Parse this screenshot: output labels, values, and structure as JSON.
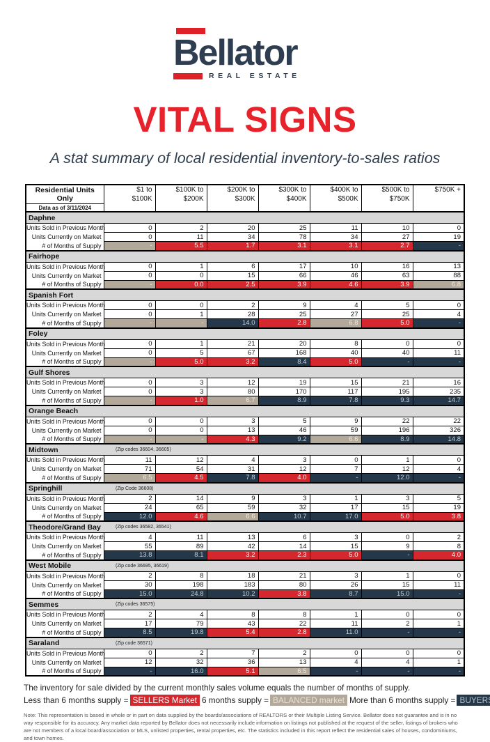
{
  "logo": {
    "name": "Bellator",
    "tagline": "REAL ESTATE"
  },
  "title": "VITAL SIGNS",
  "subtitle": "A stat summary of local residential inventory-to-sales ratios",
  "colors": {
    "brand_navy": "#2e3d4f",
    "brand_red": "#e02028",
    "title_red": "#e8222b",
    "cell_red": "#d5282e",
    "cell_navy": "#24384a",
    "cell_balanced": "#b2a99a",
    "region_header_gray": "#d8d8d8"
  },
  "table": {
    "corner": {
      "line1": "Residential Units Only",
      "line2": "Data as of 3/11/2024"
    },
    "columns": [
      [
        "$1 to",
        "$100K"
      ],
      [
        "$100K to",
        "$200K"
      ],
      [
        "$200K to",
        "$300K"
      ],
      [
        "$300K to",
        "$400K"
      ],
      [
        "$400K to",
        "$500K"
      ],
      [
        "$500K to",
        "$750K"
      ],
      [
        "$750K +",
        ""
      ]
    ],
    "row_labels": [
      "Units Sold in Previous Month",
      "Units Currently on Market",
      "# of Months of Supply"
    ],
    "regions": [
      {
        "name": "Daphne",
        "zip": "",
        "sold": [
          0,
          2,
          20,
          25,
          11,
          10,
          0
        ],
        "on_market": [
          0,
          11,
          34,
          78,
          34,
          27,
          19
        ],
        "supply": [
          "-",
          "5.5",
          "1.7",
          "3.1",
          "3.1",
          "2.7",
          "-"
        ],
        "supply_status": [
          "balanced",
          "sellers",
          "sellers",
          "sellers",
          "sellers",
          "sellers",
          "buyers"
        ]
      },
      {
        "name": "Fairhope",
        "zip": "",
        "sold": [
          0,
          1,
          6,
          17,
          10,
          16,
          13
        ],
        "on_market": [
          0,
          0,
          15,
          66,
          46,
          63,
          88
        ],
        "supply": [
          "-",
          "0.0",
          "2.5",
          "3.9",
          "4.6",
          "3.9",
          "6.8"
        ],
        "supply_status": [
          "balanced",
          "sellers",
          "sellers",
          "sellers",
          "sellers",
          "sellers",
          "balanced"
        ]
      },
      {
        "name": "Spanish Fort",
        "zip": "",
        "sold": [
          0,
          0,
          2,
          9,
          4,
          5,
          0
        ],
        "on_market": [
          0,
          1,
          28,
          25,
          27,
          25,
          4
        ],
        "supply": [
          "-",
          "-",
          "14.0",
          "2.8",
          "6.8",
          "5.0",
          "-"
        ],
        "supply_status": [
          "balanced",
          "balanced",
          "buyers",
          "sellers",
          "balanced",
          "sellers",
          "buyers"
        ]
      },
      {
        "name": "Foley",
        "zip": "",
        "sold": [
          0,
          1,
          21,
          20,
          8,
          0,
          0
        ],
        "on_market": [
          0,
          5,
          67,
          168,
          40,
          40,
          11
        ],
        "supply": [
          "-",
          "5.0",
          "3.2",
          "8.4",
          "5.0",
          "-",
          "-"
        ],
        "supply_status": [
          "balanced",
          "sellers",
          "sellers",
          "buyers",
          "sellers",
          "buyers",
          "buyers"
        ]
      },
      {
        "name": "Gulf Shores",
        "zip": "",
        "sold": [
          0,
          3,
          12,
          19,
          15,
          21,
          16
        ],
        "on_market": [
          0,
          3,
          80,
          170,
          117,
          195,
          235
        ],
        "supply": [
          "-",
          "1.0",
          "6.7",
          "8.9",
          "7.8",
          "9.3",
          "14.7"
        ],
        "supply_status": [
          "balanced",
          "sellers",
          "balanced",
          "buyers",
          "buyers",
          "buyers",
          "buyers"
        ]
      },
      {
        "name": "Orange Beach",
        "zip": "",
        "sold": [
          0,
          0,
          3,
          5,
          9,
          22,
          22
        ],
        "on_market": [
          0,
          0,
          13,
          46,
          59,
          196,
          326
        ],
        "supply": [
          "-",
          "-",
          "4.3",
          "9.2",
          "6.6",
          "8.9",
          "14.8"
        ],
        "supply_status": [
          "balanced",
          "balanced",
          "sellers",
          "buyers",
          "balanced",
          "buyers",
          "buyers"
        ]
      },
      {
        "name": "Midtown",
        "zip": "(Zip codes 36604, 36605)",
        "sold": [
          11,
          12,
          4,
          3,
          0,
          1,
          0
        ],
        "on_market": [
          71,
          54,
          31,
          12,
          7,
          12,
          4
        ],
        "supply": [
          "6.5",
          "4.5",
          "7.8",
          "4.0",
          "-",
          "12.0",
          "-"
        ],
        "supply_status": [
          "balanced",
          "sellers",
          "buyers",
          "sellers",
          "buyers",
          "buyers",
          "buyers"
        ]
      },
      {
        "name": "Springhill",
        "zip": "(Zip Code 36608)",
        "sold": [
          2,
          14,
          9,
          3,
          1,
          3,
          5
        ],
        "on_market": [
          24,
          65,
          59,
          32,
          17,
          15,
          19
        ],
        "supply": [
          "12.0",
          "4.6",
          "6.6",
          "10.7",
          "17.0",
          "5.0",
          "3.8"
        ],
        "supply_status": [
          "buyers",
          "sellers",
          "balanced",
          "buyers",
          "buyers",
          "sellers",
          "sellers"
        ]
      },
      {
        "name": "Theodore/Grand Bay",
        "zip": "(Zip codes 36582, 36541)",
        "sold": [
          4,
          11,
          13,
          6,
          3,
          0,
          2
        ],
        "on_market": [
          55,
          89,
          42,
          14,
          15,
          9,
          8
        ],
        "supply": [
          "13.8",
          "8.1",
          "3.2",
          "2.3",
          "5.0",
          "-",
          "4.0"
        ],
        "supply_status": [
          "buyers",
          "buyers",
          "sellers",
          "sellers",
          "sellers",
          "buyers",
          "sellers"
        ]
      },
      {
        "name": "West Mobile",
        "zip": "(Zip code 36695, 36619)",
        "sold": [
          2,
          8,
          18,
          21,
          3,
          1,
          0
        ],
        "on_market": [
          30,
          198,
          183,
          80,
          26,
          15,
          11
        ],
        "supply": [
          "15.0",
          "24.8",
          "10.2",
          "3.8",
          "8.7",
          "15.0",
          "-"
        ],
        "supply_status": [
          "buyers",
          "buyers",
          "buyers",
          "sellers",
          "buyers",
          "buyers",
          "buyers"
        ]
      },
      {
        "name": "Semmes",
        "zip": "(Zip codes 36575)",
        "sold": [
          2,
          4,
          8,
          8,
          1,
          0,
          0
        ],
        "on_market": [
          17,
          79,
          43,
          22,
          11,
          2,
          1
        ],
        "supply": [
          "8.5",
          "19.8",
          "5.4",
          "2.8",
          "11.0",
          "-",
          "-"
        ],
        "supply_status": [
          "buyers",
          "buyers",
          "sellers",
          "sellers",
          "buyers",
          "buyers",
          "buyers"
        ]
      },
      {
        "name": "Saraland",
        "zip": "(Zip code 36571)",
        "sold": [
          0,
          2,
          7,
          2,
          0,
          0,
          0
        ],
        "on_market": [
          12,
          32,
          36,
          13,
          4,
          4,
          1
        ],
        "supply": [
          "-",
          "16.0",
          "5.1",
          "6.5",
          "-",
          "-",
          "-"
        ],
        "supply_status": [
          "buyers",
          "buyers",
          "sellers",
          "balanced",
          "buyers",
          "buyers",
          "buyers"
        ]
      }
    ]
  },
  "footer": {
    "formula": "The inventory for sale divided by the current monthly sales volume equals the number of months of supply.",
    "legend": [
      {
        "prefix": "Less than 6 months supply =",
        "chip": "SELLERS Market",
        "type": "sellers"
      },
      {
        "prefix": "6 months supply =",
        "chip": "BALANCED market",
        "type": "balanced"
      },
      {
        "prefix": "More than 6 months supply =",
        "chip": "BUYERS Market",
        "type": "buyers"
      }
    ],
    "note": "Note: This representation is based in whole or in part on data supplied by the boards/associations of REALTORS or their Multiple Listing Service. Bellator does not guarantee and is in no way responsible for its accuracy. Any market data reported by Bellator does not necessarily include information on listings not published at the request of the seller, listings of brokers who are not members of a local board/association or MLS, unlisted properties, rental properties, etc. The statistics included in this report reflect the residential sales of houses, condominiums, and town homes."
  }
}
